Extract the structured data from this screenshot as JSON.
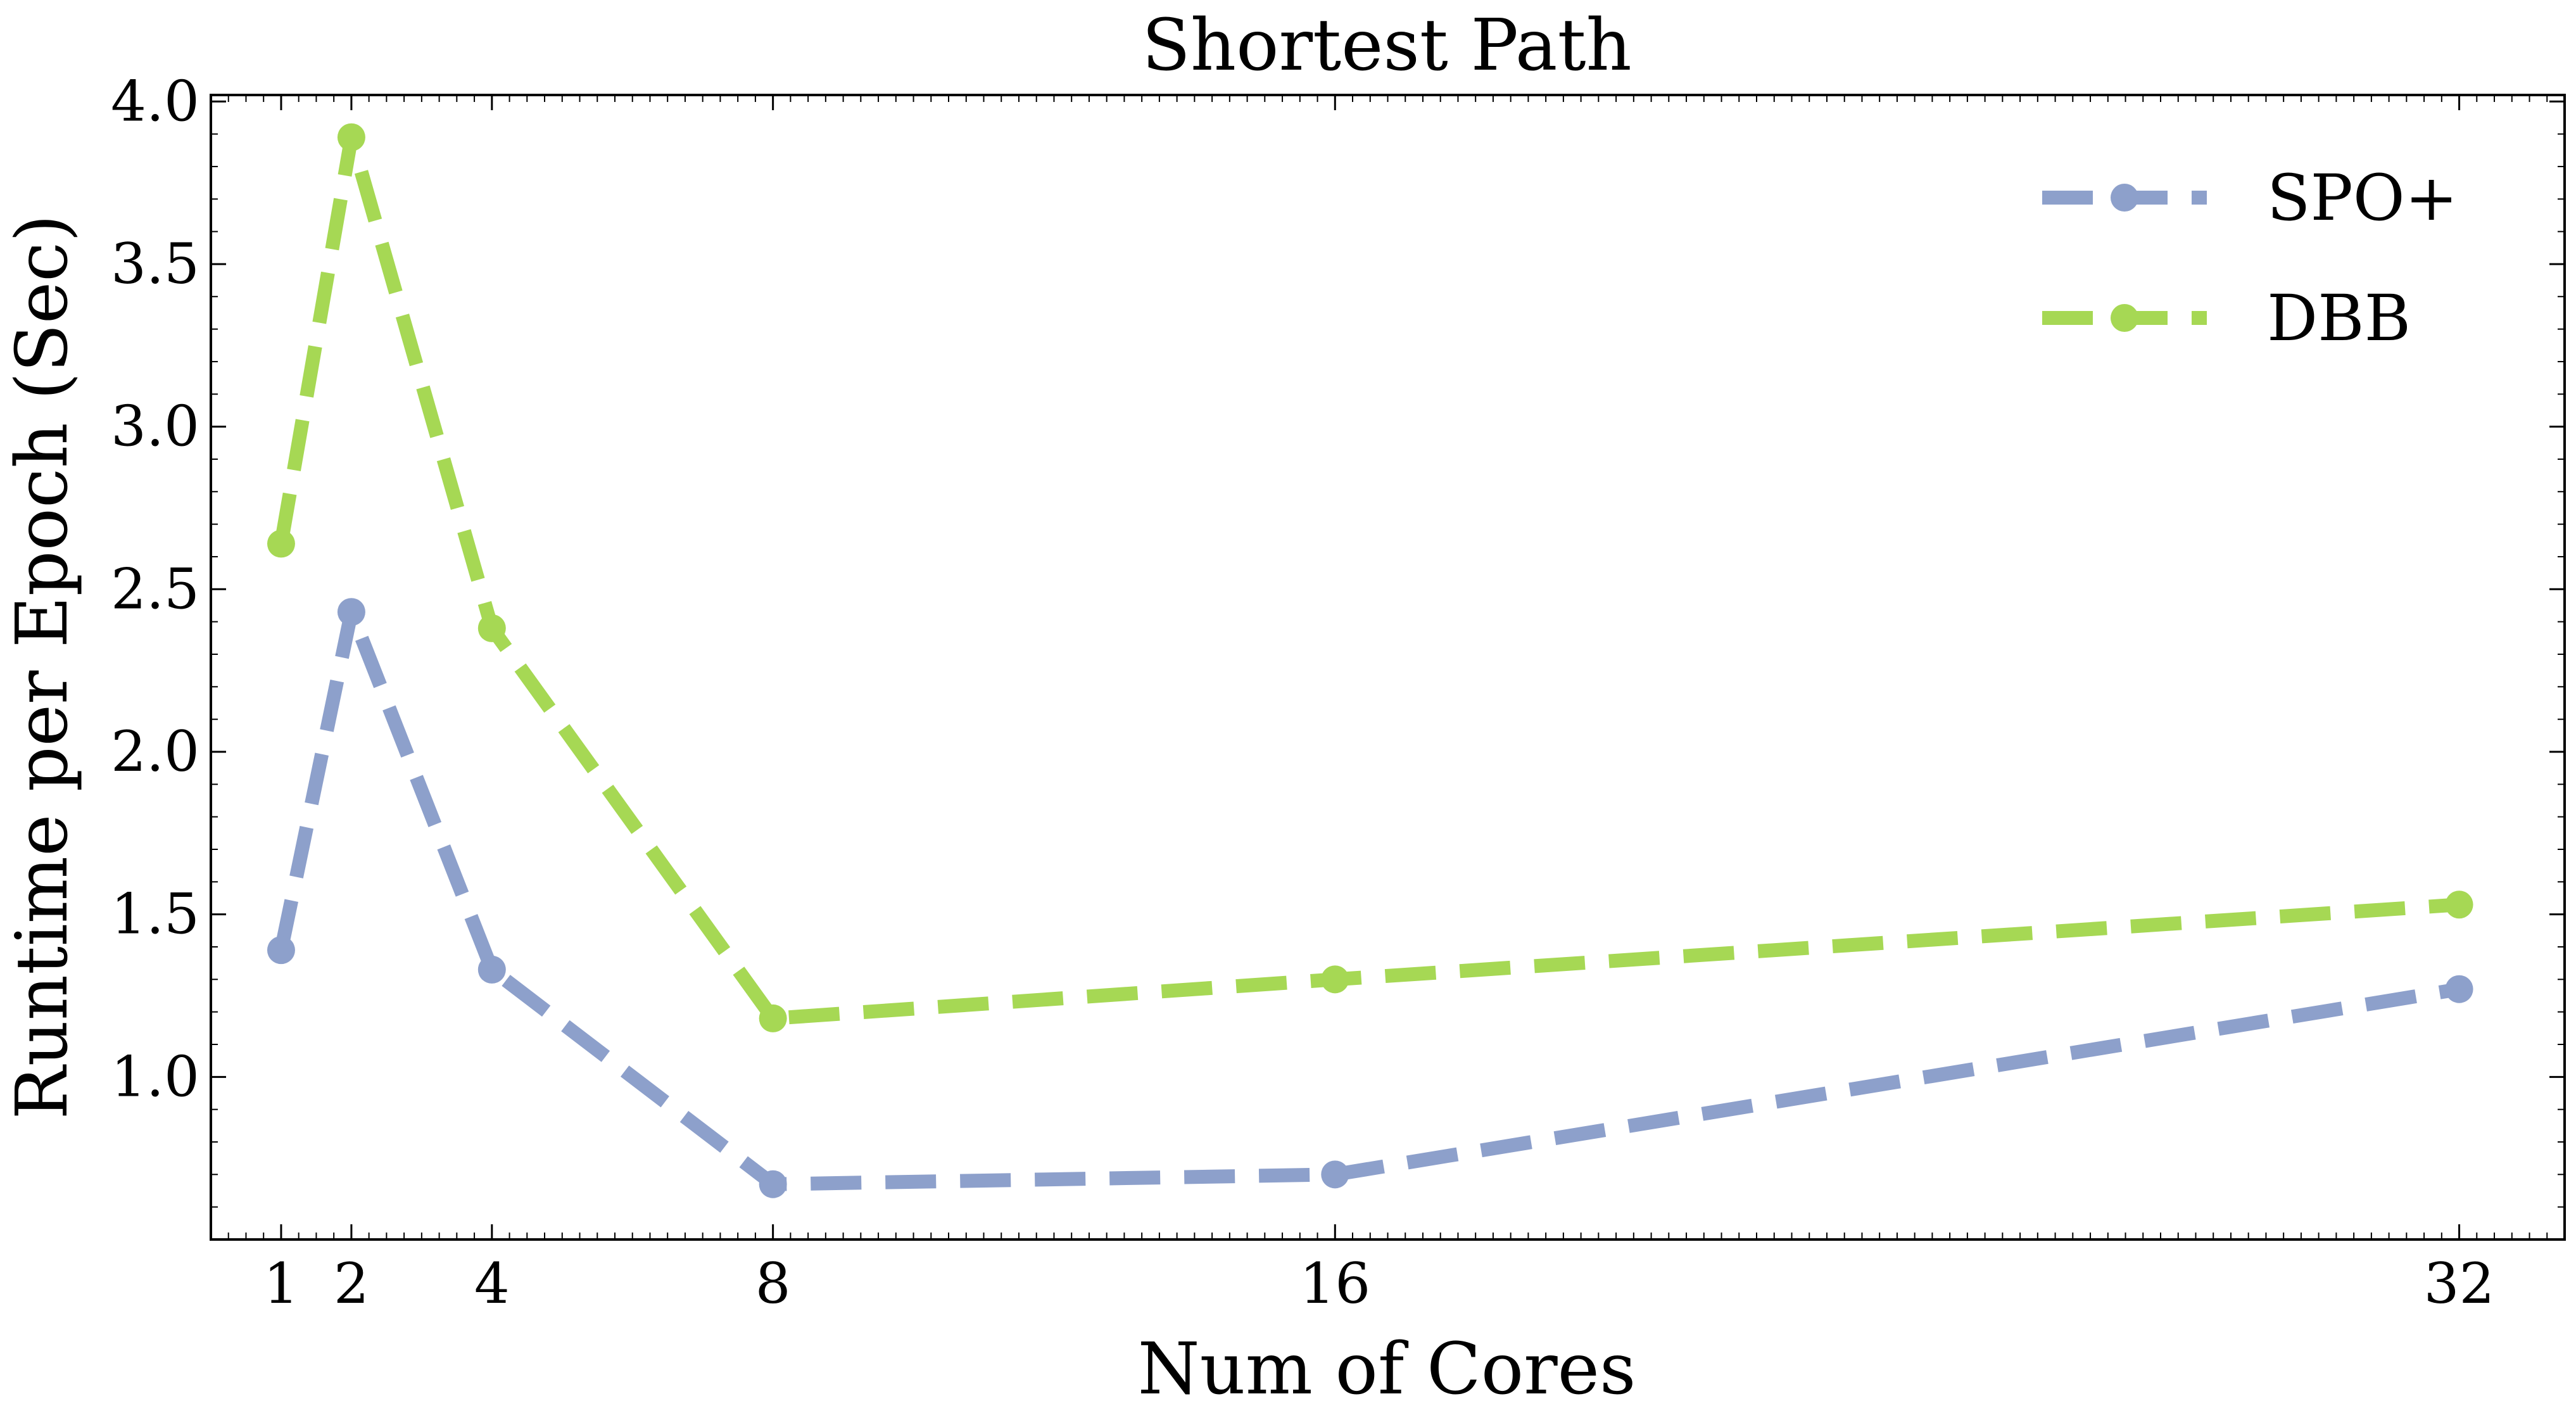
{
  "chart_data": {
    "type": "line",
    "title": "Shortest Path",
    "xlabel": "Num of Cores",
    "ylabel": "Runtime per Epoch (Sec)",
    "x": [
      1,
      2,
      4,
      8,
      16,
      32
    ],
    "xticks": [
      "1",
      "2",
      "4",
      "8",
      "16",
      "32"
    ],
    "yticks": [
      "1.0",
      "1.5",
      "2.0",
      "2.5",
      "3.0",
      "3.5",
      "4.0"
    ],
    "xlim": [
      0,
      33.5
    ],
    "ylim": [
      0.5,
      4.02
    ],
    "grid": false,
    "legend_position": "top-right",
    "series": [
      {
        "name": "SPO+",
        "color": "#8DA0CB",
        "values": [
          1.39,
          2.43,
          1.33,
          0.67,
          0.7,
          1.27
        ]
      },
      {
        "name": "DBB",
        "color": "#A6D854",
        "values": [
          2.64,
          3.89,
          2.38,
          1.18,
          1.3,
          1.53
        ]
      }
    ]
  }
}
